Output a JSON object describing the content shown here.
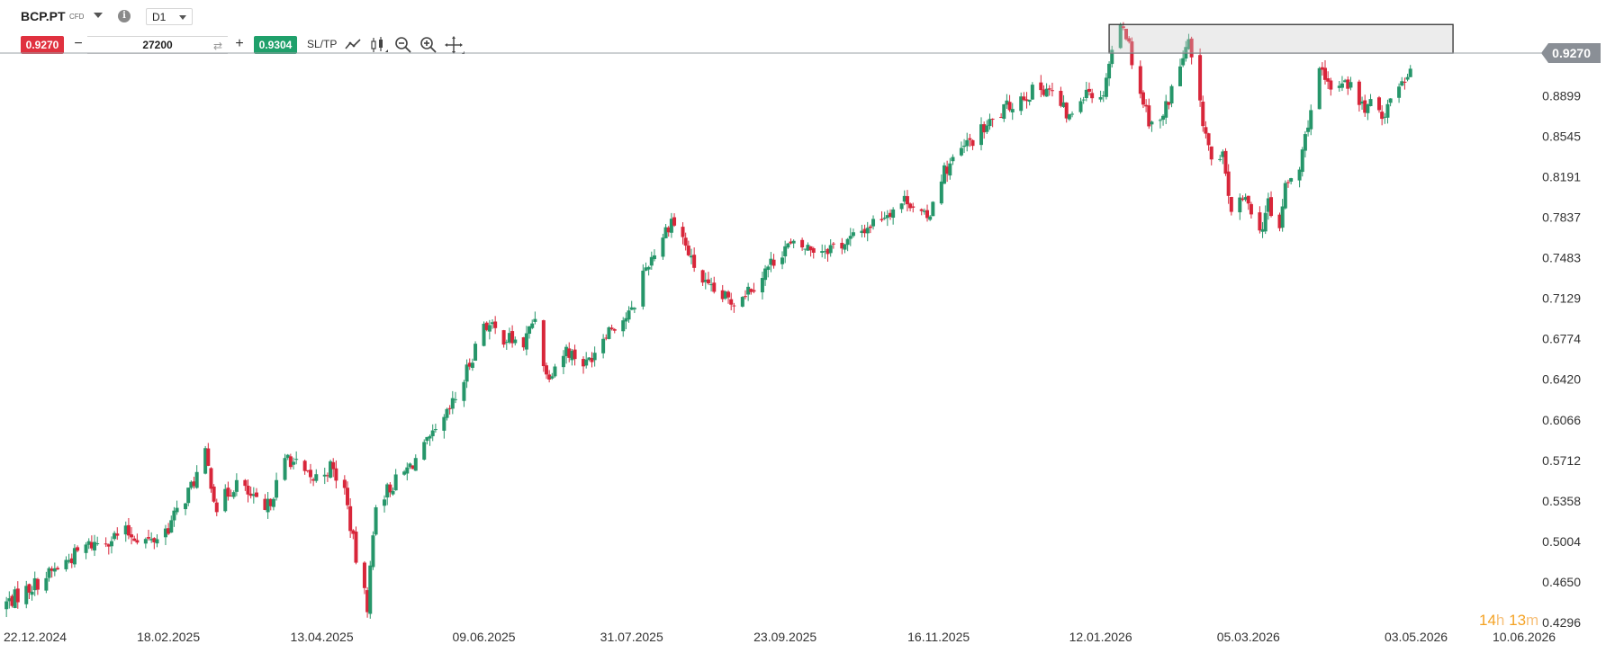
{
  "header": {
    "symbol": "BCP.PT",
    "instrument_type": "CFD",
    "timeframe": "D1",
    "sell_price": "0.9270",
    "quantity": "27200",
    "minus_label": "−",
    "plus_label": "+",
    "buy_price": "0.9304",
    "sltp_label": "SL/TP",
    "icons": [
      "line-chart-icon",
      "candlestick-icon",
      "zoom-out-icon",
      "zoom-in-icon",
      "crosshair-move-icon"
    ]
  },
  "countdown": {
    "hours": "14",
    "hours_unit": "h",
    "minutes": "13",
    "minutes_unit": "m"
  },
  "colors": {
    "up": "#26966a",
    "down": "#d8263a",
    "sell": "#e0313f",
    "buy": "#1fa06b",
    "price_tag": "#8a8f96",
    "countdown": "#f4a223"
  },
  "chart_data": {
    "type": "candlestick",
    "title": "",
    "xlabel": "",
    "ylabel": "",
    "ylim": [
      0.4296,
      0.9624
    ],
    "y_ticks": [
      "0.8899",
      "0.8545",
      "0.8191",
      "0.7837",
      "0.7483",
      "0.7129",
      "0.6774",
      "0.6420",
      "0.6066",
      "0.5712",
      "0.5358",
      "0.5004",
      "0.4650",
      "0.4296"
    ],
    "x_ticks": [
      "22.12.2024",
      "18.02.2025",
      "13.04.2025",
      "09.06.2025",
      "31.07.2025",
      "23.09.2025",
      "16.11.2025",
      "12.01.2026",
      "05.03.2026",
      "03.05.2026",
      "10.06.2026"
    ],
    "current_price": "0.9270",
    "resistance_zone": {
      "from_date": "15.01.2026",
      "to_date": "16.05.2026",
      "low": 0.927,
      "high": 0.952
    },
    "close_path": [
      [
        "22.12.2024",
        0.445
      ],
      [
        "05.01.2025",
        0.468
      ],
      [
        "20.01.2025",
        0.496
      ],
      [
        "03.02.2025",
        0.508
      ],
      [
        "12.02.2025",
        0.5
      ],
      [
        "18.02.2025",
        0.513
      ],
      [
        "26.02.2025",
        0.548
      ],
      [
        "03.03.2025",
        0.575
      ],
      [
        "07.03.2025",
        0.53
      ],
      [
        "14.03.2025",
        0.552
      ],
      [
        "24.03.2025",
        0.525
      ],
      [
        "01.04.2025",
        0.575
      ],
      [
        "09.04.2025",
        0.553
      ],
      [
        "16.04.2025",
        0.565
      ],
      [
        "21.04.2025",
        0.545
      ],
      [
        "26.04.2025",
        0.47
      ],
      [
        "29.04.2025",
        0.445
      ],
      [
        "02.05.2025",
        0.535
      ],
      [
        "12.05.2025",
        0.56
      ],
      [
        "25.05.2025",
        0.6
      ],
      [
        "01.06.2025",
        0.635
      ],
      [
        "09.06.2025",
        0.692
      ],
      [
        "15.06.2025",
        0.68
      ],
      [
        "23.06.2025",
        0.672
      ],
      [
        "27.06.2025",
        0.698
      ],
      [
        "01.07.2025",
        0.645
      ],
      [
        "08.07.2025",
        0.668
      ],
      [
        "15.07.2025",
        0.655
      ],
      [
        "22.07.2025",
        0.685
      ],
      [
        "31.07.2025",
        0.7
      ],
      [
        "04.08.2025",
        0.735
      ],
      [
        "14.08.2025",
        0.782
      ],
      [
        "18.08.2025",
        0.765
      ],
      [
        "21.08.2025",
        0.745
      ],
      [
        "27.08.2025",
        0.72
      ],
      [
        "04.09.2025",
        0.71
      ],
      [
        "12.09.2025",
        0.725
      ],
      [
        "23.09.2025",
        0.758
      ],
      [
        "06.10.2025",
        0.756
      ],
      [
        "15.10.2025",
        0.762
      ],
      [
        "27.10.2025",
        0.785
      ],
      [
        "05.11.2025",
        0.8
      ],
      [
        "12.11.2025",
        0.78
      ],
      [
        "16.11.2025",
        0.818
      ],
      [
        "26.11.2025",
        0.847
      ],
      [
        "04.12.2025",
        0.865
      ],
      [
        "14.12.2025",
        0.888
      ],
      [
        "24.12.2025",
        0.898
      ],
      [
        "01.01.2026",
        0.87
      ],
      [
        "07.01.2026",
        0.898
      ],
      [
        "12.01.2026",
        0.885
      ],
      [
        "16.01.2026",
        0.93
      ],
      [
        "20.01.2026",
        0.955
      ],
      [
        "25.01.2026",
        0.9
      ],
      [
        "29.01.2026",
        0.87
      ],
      [
        "02.02.2026",
        0.865
      ],
      [
        "08.02.2026",
        0.91
      ],
      [
        "12.02.2026",
        0.935
      ],
      [
        "15.02.2026",
        0.89
      ],
      [
        "18.02.2026",
        0.857
      ],
      [
        "21.02.2026",
        0.82
      ],
      [
        "24.02.2026",
        0.835
      ],
      [
        "27.02.2026",
        0.79
      ],
      [
        "05.03.2026",
        0.8
      ],
      [
        "09.03.2026",
        0.77
      ],
      [
        "12.03.2026",
        0.795
      ],
      [
        "15.03.2026",
        0.76
      ],
      [
        "18.03.2026",
        0.81
      ],
      [
        "23.03.2026",
        0.825
      ],
      [
        "26.03.2026",
        0.868
      ],
      [
        "30.03.2026",
        0.91
      ],
      [
        "03.04.2026",
        0.893
      ],
      [
        "08.04.2026",
        0.906
      ],
      [
        "14.04.2026",
        0.88
      ],
      [
        "18.04.2026",
        0.88
      ],
      [
        "22.04.2026",
        0.875
      ],
      [
        "26.04.2026",
        0.898
      ],
      [
        "30.04.2026",
        0.91
      ],
      [
        "03.05.2026",
        0.928
      ]
    ]
  }
}
